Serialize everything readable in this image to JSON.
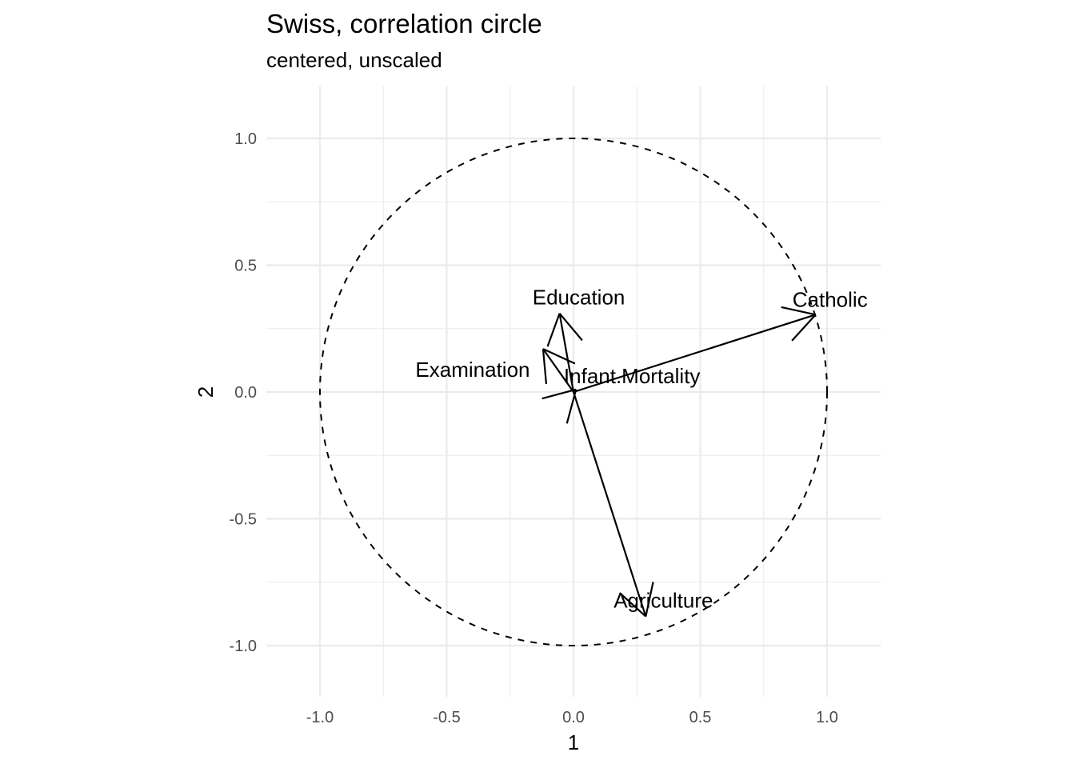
{
  "chart_data": {
    "type": "scatter",
    "title": "Swiss, correlation circle",
    "subtitle": "centered, unscaled",
    "xlabel": "1",
    "ylabel": "2",
    "xlim": [
      -1.2,
      1.2
    ],
    "ylim": [
      -1.2,
      1.2
    ],
    "x_ticks": [
      -1.0,
      -0.5,
      0.0,
      0.5,
      1.0
    ],
    "y_ticks": [
      -1.0,
      -0.5,
      0.0,
      0.5,
      1.0
    ],
    "x_tick_labels": [
      "-1.0",
      "-0.5",
      "0.0",
      "0.5",
      "1.0"
    ],
    "y_tick_labels": [
      "-1.0",
      "-0.5",
      "0.0",
      "0.5",
      "1.0"
    ],
    "grid": true,
    "unit_circle": true,
    "variables": [
      {
        "name": "Agriculture",
        "x": 0.285,
        "y": -0.885
      },
      {
        "name": "Examination",
        "x": -0.12,
        "y": 0.17
      },
      {
        "name": "Education",
        "x": -0.055,
        "y": 0.31
      },
      {
        "name": "Catholic",
        "x": 0.955,
        "y": 0.305
      },
      {
        "name": "Infant.Mortality",
        "x": 0.01,
        "y": 0.01
      }
    ]
  }
}
